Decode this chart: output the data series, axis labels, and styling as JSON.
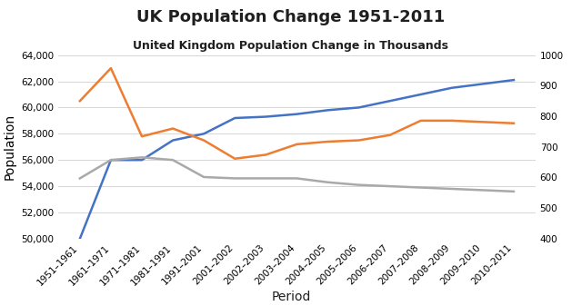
{
  "title": "UK Population Change 1951-2011",
  "subtitle": "United Kingdom Population Change in Thousands",
  "xlabel": "Period",
  "ylabel": "Population",
  "categories": [
    "1951–1961",
    "1961–1971",
    "1971–1981",
    "1981–1991",
    "1991–2001",
    "2001–2002",
    "2002–2003",
    "2003–2004",
    "2004–2005",
    "2005–2006",
    "2006–2007",
    "2007–2008",
    "2008–2009",
    "2009–2010",
    "2010–2011"
  ],
  "blue_line": [
    50000,
    56000,
    56000,
    57500,
    58000,
    59200,
    59300,
    59500,
    59800,
    60000,
    60500,
    61000,
    61500,
    61800,
    62100
  ],
  "orange_line": [
    60500,
    63000,
    57800,
    58400,
    57500,
    56100,
    56400,
    57200,
    57400,
    57500,
    57900,
    59000,
    59000,
    58900,
    58800
  ],
  "gray_line": [
    54600,
    56000,
    56200,
    56000,
    54700,
    54600,
    54600,
    54600,
    54300,
    54100,
    54000,
    53900,
    53800,
    53700,
    53600
  ],
  "blue_color": "#4472C4",
  "orange_color": "#ED7D31",
  "gray_color": "#A9A9A9",
  "ylim_left": [
    50000,
    64000
  ],
  "ylim_right": [
    400,
    1000
  ],
  "yticks_left": [
    50000,
    52000,
    54000,
    56000,
    58000,
    60000,
    62000,
    64000
  ],
  "yticks_right": [
    400,
    500,
    600,
    700,
    800,
    900,
    1000
  ],
  "background_color": "#FFFFFF",
  "title_fontsize": 13,
  "subtitle_fontsize": 9,
  "axis_label_fontsize": 10,
  "tick_fontsize": 7.5
}
